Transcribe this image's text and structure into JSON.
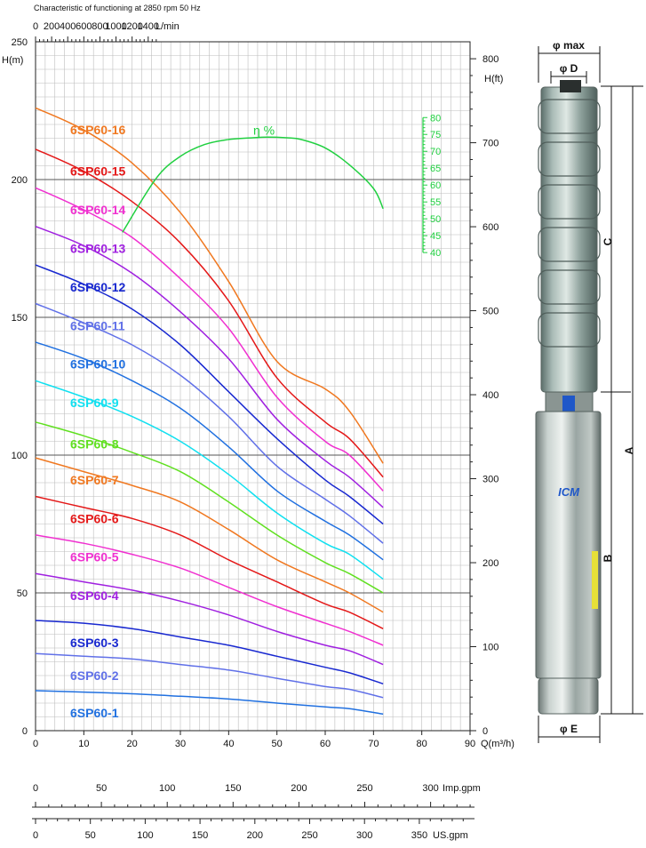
{
  "chart_data": {
    "type": "line",
    "title": "Characteristic of  functioning at 2850 rpm 50 Hz",
    "axes": {
      "x_bottom": {
        "label": "Q(m³/h)",
        "range": [
          0,
          90
        ],
        "ticks": [
          0,
          10,
          20,
          30,
          40,
          50,
          60,
          70,
          80,
          90
        ]
      },
      "x_top": {
        "label": "L/min",
        "range": [
          0,
          1500
        ],
        "ticks": [
          0,
          200,
          400,
          600,
          800,
          1000,
          1200,
          1400
        ]
      },
      "y_left": {
        "label": "H(m)",
        "range": [
          0,
          250
        ],
        "ticks": [
          0,
          50,
          100,
          150,
          200,
          250
        ]
      },
      "y_right": {
        "label": "H(ft)",
        "range": [
          0,
          820.2
        ],
        "ticks": [
          0,
          100,
          200,
          300,
          400,
          500,
          600,
          700,
          800
        ]
      },
      "efficiency_axis": {
        "label": "η %",
        "range": [
          40,
          80
        ],
        "ticks": [
          40,
          45,
          50,
          55,
          60,
          65,
          70,
          75,
          80
        ]
      },
      "imp_gpm": {
        "label": "Imp.gpm",
        "ticks": [
          0,
          50,
          100,
          150,
          200,
          250,
          300
        ]
      },
      "us_gpm": {
        "label": "US.gpm",
        "ticks": [
          0,
          50,
          100,
          150,
          200,
          250,
          300,
          350
        ]
      }
    },
    "grid": true,
    "x": [
      0,
      10,
      20,
      30,
      40,
      50,
      60,
      65,
      72
    ],
    "series": [
      {
        "name": "6SP60-16",
        "color": "#f07820",
        "values": [
          226,
          218,
          206,
          188,
          163,
          134,
          124,
          116,
          97
        ]
      },
      {
        "name": "6SP60-15",
        "color": "#e41818",
        "values": [
          211,
          203,
          192,
          177,
          156,
          128,
          112,
          106,
          92
        ]
      },
      {
        "name": "6SP60-14",
        "color": "#f030d0",
        "values": [
          197,
          189,
          179,
          164,
          146,
          121,
          105,
          100,
          87
        ]
      },
      {
        "name": "6SP60-13",
        "color": "#a020e0",
        "values": [
          183,
          176,
          166,
          152,
          135,
          113,
          98,
          92,
          81
        ]
      },
      {
        "name": "6SP60-12",
        "color": "#1828d0",
        "values": [
          169,
          162,
          153,
          140,
          123,
          106,
          91,
          85,
          75
        ]
      },
      {
        "name": "6SP60-11",
        "color": "#6070e8",
        "values": [
          155,
          148,
          140,
          129,
          114,
          96,
          84,
          78,
          68
        ]
      },
      {
        "name": "6SP60-10",
        "color": "#2070e0",
        "values": [
          141,
          135,
          127,
          117,
          103,
          87,
          76,
          71,
          62
        ]
      },
      {
        "name": "6SP60-9",
        "color": "#10e0f0",
        "values": [
          127,
          121,
          114,
          105,
          93,
          79,
          68,
          64,
          55
        ]
      },
      {
        "name": "6SP60-8",
        "color": "#60e020",
        "values": [
          112,
          107,
          101,
          94,
          83,
          71,
          61,
          57,
          50
        ]
      },
      {
        "name": "6SP60-7",
        "color": "#f07820",
        "values": [
          99,
          94,
          89,
          83,
          73,
          62,
          54,
          50,
          43
        ]
      },
      {
        "name": "6SP60-6",
        "color": "#e41818",
        "values": [
          85,
          81,
          77,
          71,
          62,
          54,
          46,
          43,
          37
        ]
      },
      {
        "name": "6SP60-5",
        "color": "#f030d0",
        "values": [
          71,
          68,
          64,
          59,
          52,
          45,
          39,
          36,
          31
        ]
      },
      {
        "name": "6SP60-4",
        "color": "#a020e0",
        "values": [
          57,
          54,
          51,
          47,
          42,
          36,
          31,
          29,
          24
        ]
      },
      {
        "name": "6SP60-3",
        "color": "#1828d0",
        "values": [
          40,
          39,
          37,
          34,
          31,
          27,
          23,
          21,
          17
        ]
      },
      {
        "name": "6SP60-2",
        "color": "#6070e8",
        "values": [
          28,
          27,
          26,
          24,
          22,
          19,
          16,
          15,
          12
        ]
      },
      {
        "name": "6SP60-1",
        "color": "#2070e0",
        "values": [
          14.5,
          14,
          13.4,
          12.5,
          11.5,
          10,
          8.6,
          8,
          6
        ]
      }
    ],
    "efficiency": {
      "name": "η %",
      "color": "#20d040",
      "x": [
        18,
        25,
        30,
        35,
        40,
        45,
        48,
        52,
        55,
        60,
        65,
        70,
        72
      ],
      "values": [
        46,
        62,
        68.5,
        72,
        73.5,
        74,
        74.2,
        74,
        73.5,
        71,
        66,
        59,
        53
      ]
    }
  },
  "pump_drawing": {
    "dimension_labels": [
      "φ max",
      "φ D",
      "C",
      "A",
      "B",
      "φ E"
    ],
    "brand_logo": "ICM"
  }
}
